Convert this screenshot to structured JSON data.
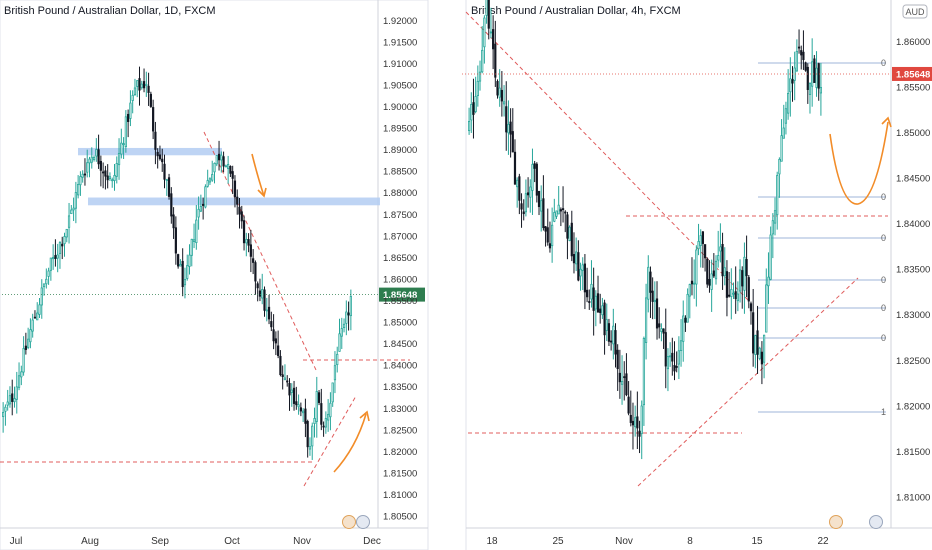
{
  "colors": {
    "up": "#26a69a",
    "down": "#131722",
    "body_up": "#ffffff",
    "trend": "#e05c5c",
    "fib": "#9fb5d8",
    "zone": "#b3ccf2",
    "projection": "#f28c28",
    "tag_left": "#2e7d4f",
    "tag_right": "#e0483f",
    "grid": "#ffffff",
    "axis_line": "#d0d3db"
  },
  "chart_data": [
    {
      "type": "candlestick",
      "title": "British Pound / Australian Dollar, 1D, FXCM",
      "currency_badge": "",
      "x_tick_labels": [
        "Jul",
        "Aug",
        "Sep",
        "Oct",
        "Nov",
        "Dec"
      ],
      "y_ticks": [
        1.92,
        1.915,
        1.91,
        1.905,
        1.9,
        1.895,
        1.89,
        1.885,
        1.88,
        1.875,
        1.87,
        1.865,
        1.86,
        1.855,
        1.85,
        1.845,
        1.84,
        1.835,
        1.83,
        1.825,
        1.82,
        1.815,
        1.81,
        1.805
      ],
      "y_tick_labels": [
        "1.92000",
        "1.91500",
        "1.91000",
        "1.90500",
        "1.90000",
        "1.89500",
        "1.89000",
        "1.88500",
        "1.88000",
        "1.87500",
        "1.87000",
        "1.86500",
        "1.86000",
        "1.85500",
        "1.85000",
        "1.84500",
        "1.84000",
        "1.83500",
        "1.83000",
        "1.82500",
        "1.82000",
        "1.81500",
        "1.81000",
        "1.80500"
      ],
      "ylim": [
        1.8035,
        1.9225
      ],
      "last_price": 1.85648,
      "last_price_label": "1.85648",
      "anchors": [
        [
          0,
          1.8285
        ],
        [
          5,
          1.834
        ],
        [
          12,
          1.848
        ],
        [
          20,
          1.862
        ],
        [
          28,
          1.872
        ],
        [
          35,
          1.885
        ],
        [
          40,
          1.89
        ],
        [
          48,
          1.882
        ],
        [
          55,
          1.898
        ],
        [
          58,
          1.904
        ],
        [
          63,
          1.906
        ],
        [
          67,
          1.892
        ],
        [
          72,
          1.882
        ],
        [
          76,
          1.866
        ],
        [
          80,
          1.858
        ],
        [
          85,
          1.874
        ],
        [
          92,
          1.886
        ],
        [
          96,
          1.89
        ],
        [
          102,
          1.88
        ],
        [
          106,
          1.87
        ],
        [
          110,
          1.862
        ],
        [
          114,
          1.856
        ],
        [
          118,
          1.848
        ],
        [
          123,
          1.838
        ],
        [
          128,
          1.833
        ],
        [
          132,
          1.828
        ],
        [
          135,
          1.82
        ],
        [
          138,
          1.833
        ],
        [
          141,
          1.825
        ],
        [
          144,
          1.832
        ],
        [
          147,
          1.844
        ],
        [
          150,
          1.848
        ],
        [
          153,
          1.8555
        ]
      ]
    },
    {
      "type": "candlestick",
      "title": "British Pound / Australian Dollar, 4h, FXCM",
      "currency_badge": "AUD",
      "x_tick_labels": [
        "18",
        "25",
        "Nov",
        "8",
        "15",
        "22"
      ],
      "y_ticks": [
        1.86,
        1.855,
        1.85,
        1.845,
        1.84,
        1.835,
        1.83,
        1.825,
        1.82,
        1.815,
        1.81
      ],
      "y_tick_labels": [
        "1.86000",
        "1.85500",
        "1.85000",
        "1.84500",
        "1.84000",
        "1.83500",
        "1.83000",
        "1.82500",
        "1.82000",
        "1.81500",
        "1.81000"
      ],
      "ylim": [
        1.8072,
        1.8635
      ],
      "last_price": 1.85648,
      "last_price_label": "1.85648",
      "fib_level_marks": [
        "0",
        "0",
        "0",
        "0",
        "0",
        "0",
        "1"
      ],
      "anchors": [
        [
          0,
          1.85
        ],
        [
          5,
          1.858
        ],
        [
          8,
          1.864
        ],
        [
          12,
          1.856
        ],
        [
          18,
          1.85
        ],
        [
          24,
          1.842
        ],
        [
          30,
          1.846
        ],
        [
          36,
          1.838
        ],
        [
          42,
          1.843
        ],
        [
          48,
          1.836
        ],
        [
          54,
          1.833
        ],
        [
          60,
          1.83
        ],
        [
          66,
          1.828
        ],
        [
          70,
          1.823
        ],
        [
          74,
          1.818
        ],
        [
          78,
          1.817
        ],
        [
          82,
          1.835
        ],
        [
          86,
          1.83
        ],
        [
          90,
          1.826
        ],
        [
          94,
          1.824
        ],
        [
          98,
          1.829
        ],
        [
          102,
          1.833
        ],
        [
          106,
          1.84
        ],
        [
          110,
          1.833
        ],
        [
          114,
          1.837
        ],
        [
          118,
          1.833
        ],
        [
          122,
          1.832
        ],
        [
          126,
          1.835
        ],
        [
          130,
          1.827
        ],
        [
          134,
          1.826
        ],
        [
          138,
          1.838
        ],
        [
          142,
          1.847
        ],
        [
          146,
          1.854
        ],
        [
          150,
          1.859
        ],
        [
          154,
          1.856
        ],
        [
          158,
          1.857
        ],
        [
          161,
          1.856
        ]
      ]
    }
  ],
  "footer_badges": [
    "",
    ""
  ]
}
